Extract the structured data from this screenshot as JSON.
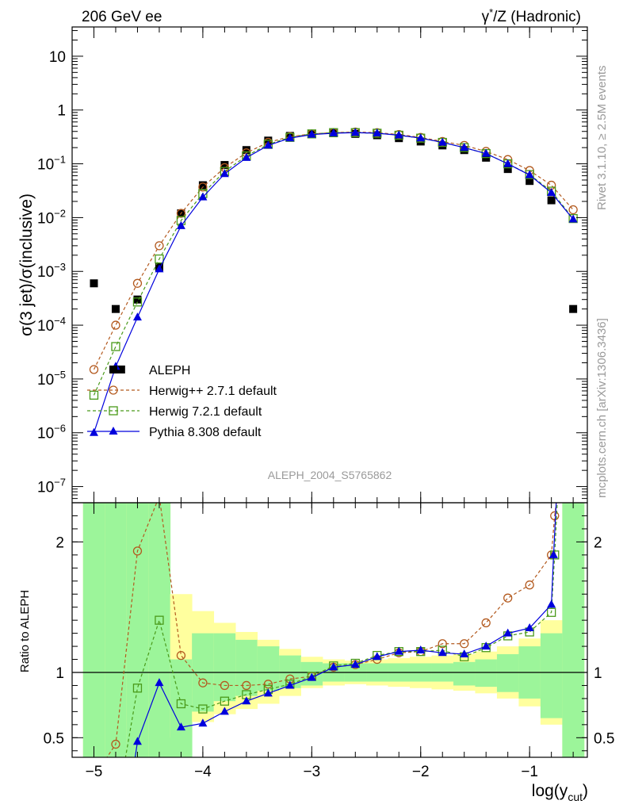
{
  "header": {
    "left": "206 GeV ee",
    "right_pre": "γ",
    "right_sup": "*",
    "right_post": "/Z (Hadronic)"
  },
  "side_labels": {
    "rivet": "Rivet 3.1.10, ≥ 2.5M events",
    "mcplots": "mcplots.cern.ch [arXiv:1306.3436]"
  },
  "analysis_id": "ALEPH_2004_S5765862",
  "chart_data": [
    {
      "panel": "main",
      "type": "scatter",
      "ylabel": "σ(3 jet)/σ(inclusive)",
      "yscale": "log",
      "xlim": [
        -5.2,
        -0.47
      ],
      "ylim": [
        5e-08,
        35
      ],
      "y_ticks": [
        {
          "v": 10,
          "t": "10"
        },
        {
          "v": 1,
          "t": "1"
        },
        {
          "v": 0.1,
          "t": "10",
          "e": "−1"
        },
        {
          "v": 0.01,
          "t": "10",
          "e": "−2"
        },
        {
          "v": 0.001,
          "t": "10",
          "e": "−3"
        },
        {
          "v": 0.0001,
          "t": "10",
          "e": "−4"
        },
        {
          "v": 1e-05,
          "t": "10",
          "e": "−5"
        },
        {
          "v": 1e-06,
          "t": "10",
          "e": "−6"
        },
        {
          "v": 1e-07,
          "t": "10",
          "e": "−7"
        }
      ],
      "legend_position": "center-left",
      "series": [
        {
          "name": "ALEPH",
          "color": "#000000",
          "marker": "filled-square",
          "line": "none",
          "x": [
            -5.0,
            -4.8,
            -4.75,
            -4.6,
            -4.4,
            -4.2,
            -4.0,
            -3.8,
            -3.6,
            -3.4,
            -3.2,
            -3.0,
            -2.8,
            -2.6,
            -2.4,
            -2.2,
            -2.0,
            -1.8,
            -1.6,
            -1.4,
            -1.2,
            -1.0,
            -0.8,
            -0.6
          ],
          "y": [
            0.0006,
            0.0002,
            1.5e-05,
            0.0003,
            0.0012,
            0.012,
            0.04,
            0.095,
            0.18,
            0.27,
            0.33,
            0.36,
            0.37,
            0.36,
            0.34,
            0.3,
            0.26,
            0.22,
            0.18,
            0.13,
            0.08,
            0.048,
            0.021,
            0.0002
          ]
        },
        {
          "name": "Herwig++ 2.7.1 default",
          "color": "#b35a1f",
          "marker": "open-circle",
          "line": "dashed",
          "x": [
            -5.0,
            -4.8,
            -4.6,
            -4.4,
            -4.2,
            -4.0,
            -3.8,
            -3.6,
            -3.4,
            -3.2,
            -3.0,
            -2.8,
            -2.6,
            -2.4,
            -2.2,
            -2.0,
            -1.8,
            -1.6,
            -1.4,
            -1.2,
            -1.0,
            -0.8,
            -0.6
          ],
          "y": [
            1.5e-05,
            0.0001,
            0.0006,
            0.003,
            0.012,
            0.037,
            0.085,
            0.16,
            0.25,
            0.32,
            0.36,
            0.38,
            0.39,
            0.38,
            0.35,
            0.31,
            0.26,
            0.22,
            0.17,
            0.12,
            0.075,
            0.04,
            0.014
          ]
        },
        {
          "name": "Herwig 7.2.1 default",
          "color": "#4a9a1a",
          "marker": "open-square",
          "line": "dashed",
          "x": [
            -5.0,
            -4.8,
            -4.6,
            -4.4,
            -4.2,
            -4.0,
            -3.8,
            -3.6,
            -3.4,
            -3.2,
            -3.0,
            -2.8,
            -2.6,
            -2.4,
            -2.2,
            -2.0,
            -1.8,
            -1.6,
            -1.4,
            -1.2,
            -1.0,
            -0.8,
            -0.6
          ],
          "y": [
            5e-06,
            4e-05,
            0.00027,
            0.0017,
            0.0088,
            0.028,
            0.072,
            0.14,
            0.23,
            0.31,
            0.36,
            0.38,
            0.38,
            0.37,
            0.34,
            0.3,
            0.25,
            0.2,
            0.155,
            0.1,
            0.063,
            0.031,
            0.0096
          ]
        },
        {
          "name": "Pythia 8.308 default",
          "color": "#0000dd",
          "marker": "filled-triangle",
          "line": "solid",
          "x": [
            -5.0,
            -4.8,
            -4.6,
            -4.4,
            -4.2,
            -4.0,
            -3.8,
            -3.6,
            -3.4,
            -3.2,
            -3.0,
            -2.8,
            -2.6,
            -2.4,
            -2.2,
            -2.0,
            -1.8,
            -1.6,
            -1.4,
            -1.2,
            -1.0,
            -0.8,
            -0.6
          ],
          "y": [
            1e-06,
            1.7e-05,
            0.00014,
            0.0011,
            0.007,
            0.024,
            0.065,
            0.13,
            0.22,
            0.3,
            0.35,
            0.37,
            0.38,
            0.37,
            0.34,
            0.3,
            0.25,
            0.2,
            0.155,
            0.1,
            0.062,
            0.029,
            0.0093
          ]
        }
      ]
    },
    {
      "panel": "ratio",
      "type": "line",
      "ylabel": "Ratio to ALEPH",
      "xlabel": "log(y",
      "xlabel_sub": "cut",
      "xlabel_end": ")",
      "xlim": [
        -5.2,
        -0.47
      ],
      "ylim": [
        0.35,
        2.3
      ],
      "x_ticks": [
        {
          "v": -5,
          "t": "−5"
        },
        {
          "v": -4,
          "t": "−4"
        },
        {
          "v": -3,
          "t": "−3"
        },
        {
          "v": -2,
          "t": "−2"
        },
        {
          "v": -1,
          "t": "−1"
        }
      ],
      "y_ticks": [
        {
          "v": 2,
          "t": "2"
        },
        {
          "v": 1,
          "t": "1"
        },
        {
          "v": 0.5,
          "t": "0.5"
        }
      ],
      "reference_line": 1,
      "bands": {
        "edges": [
          -5.1,
          -4.9,
          -4.7,
          -4.5,
          -4.3,
          -4.1,
          -3.9,
          -3.7,
          -3.5,
          -3.3,
          -3.1,
          -2.9,
          -2.7,
          -2.5,
          -2.3,
          -2.1,
          -1.9,
          -1.7,
          -1.5,
          -1.3,
          -1.1,
          -0.9,
          -0.7,
          -0.5
        ],
        "yellow": [
          [
            0.35,
            2.4
          ],
          [
            0.35,
            2.4
          ],
          [
            0.35,
            2.4
          ],
          [
            0.35,
            2.4
          ],
          [
            0.5,
            1.6
          ],
          [
            0.62,
            1.47
          ],
          [
            0.68,
            1.38
          ],
          [
            0.72,
            1.31
          ],
          [
            0.76,
            1.25
          ],
          [
            0.82,
            1.18
          ],
          [
            0.88,
            1.12
          ],
          [
            0.9,
            1.1
          ],
          [
            0.91,
            1.09
          ],
          [
            0.9,
            1.1
          ],
          [
            0.89,
            1.11
          ],
          [
            0.88,
            1.12
          ],
          [
            0.87,
            1.13
          ],
          [
            0.86,
            1.14
          ],
          [
            0.84,
            1.16
          ],
          [
            0.8,
            1.2
          ],
          [
            0.74,
            1.26
          ],
          [
            0.6,
            1.4
          ],
          [
            0.35,
            2.4
          ]
        ],
        "green": [
          [
            0.35,
            2.4
          ],
          [
            0.35,
            2.4
          ],
          [
            0.35,
            2.4
          ],
          [
            0.35,
            2.4
          ],
          [
            0.35,
            1.1
          ],
          [
            0.7,
            1.3
          ],
          [
            0.78,
            1.3
          ],
          [
            0.82,
            1.25
          ],
          [
            0.86,
            1.2
          ],
          [
            0.88,
            1.13
          ],
          [
            0.9,
            1.08
          ],
          [
            0.93,
            1.07
          ],
          [
            0.93,
            1.07
          ],
          [
            0.93,
            1.07
          ],
          [
            0.93,
            1.07
          ],
          [
            0.93,
            1.07
          ],
          [
            0.93,
            1.07
          ],
          [
            0.9,
            1.08
          ],
          [
            0.89,
            1.1
          ],
          [
            0.85,
            1.14
          ],
          [
            0.8,
            1.2
          ],
          [
            0.65,
            1.3
          ],
          [
            0.35,
            2.4
          ]
        ]
      },
      "series": [
        {
          "name": "Herwig++ 2.7.1 default",
          "color": "#b35a1f",
          "marker": "open-circle",
          "line": "dashed",
          "x": [
            -4.92,
            -4.8,
            -4.6,
            -4.4,
            -4.2,
            -4.0,
            -3.8,
            -3.6,
            -3.4,
            -3.2,
            -3.0,
            -2.8,
            -2.6,
            -2.4,
            -2.2,
            -2.0,
            -1.8,
            -1.6,
            -1.4,
            -1.2,
            -1.0,
            -0.8,
            -0.77,
            -0.74
          ],
          "y": [
            0.3,
            0.45,
            1.93,
            2.35,
            1.13,
            0.92,
            0.9,
            0.9,
            0.91,
            0.95,
            0.97,
            1.04,
            1.06,
            1.1,
            1.15,
            1.16,
            1.22,
            1.22,
            1.38,
            1.57,
            1.67,
            1.9,
            2.2,
            2.4
          ]
        },
        {
          "name": "Herwig 7.2.1 default",
          "color": "#4a9a1a",
          "marker": "open-square",
          "line": "dashed",
          "x": [
            -4.72,
            -4.6,
            -4.4,
            -4.2,
            -4.0,
            -3.8,
            -3.6,
            -3.4,
            -3.2,
            -3.0,
            -2.8,
            -2.6,
            -2.4,
            -2.2,
            -2.0,
            -1.8,
            -1.6,
            -1.4,
            -1.2,
            -1.0,
            -0.8,
            -0.77,
            -0.74
          ],
          "y": [
            0.3,
            0.88,
            1.4,
            0.76,
            0.72,
            0.78,
            0.83,
            0.87,
            0.91,
            0.97,
            1.05,
            1.07,
            1.13,
            1.16,
            1.16,
            1.17,
            1.12,
            1.19,
            1.28,
            1.31,
            1.46,
            1.9,
            2.4
          ]
        },
        {
          "name": "Pythia 8.308 default",
          "color": "#0000dd",
          "marker": "filled-triangle",
          "line": "solid",
          "x": [
            -4.63,
            -4.6,
            -4.4,
            -4.2,
            -4.0,
            -3.8,
            -3.6,
            -3.4,
            -3.2,
            -3.0,
            -2.8,
            -2.6,
            -2.4,
            -2.2,
            -2.0,
            -1.8,
            -1.6,
            -1.4,
            -1.2,
            -1.0,
            -0.8,
            -0.78,
            -0.75
          ],
          "y": [
            0.3,
            0.47,
            0.92,
            0.58,
            0.61,
            0.7,
            0.78,
            0.84,
            0.9,
            0.96,
            1.04,
            1.06,
            1.12,
            1.16,
            1.17,
            1.15,
            1.14,
            1.2,
            1.3,
            1.34,
            1.52,
            1.9,
            2.4
          ]
        }
      ]
    }
  ]
}
